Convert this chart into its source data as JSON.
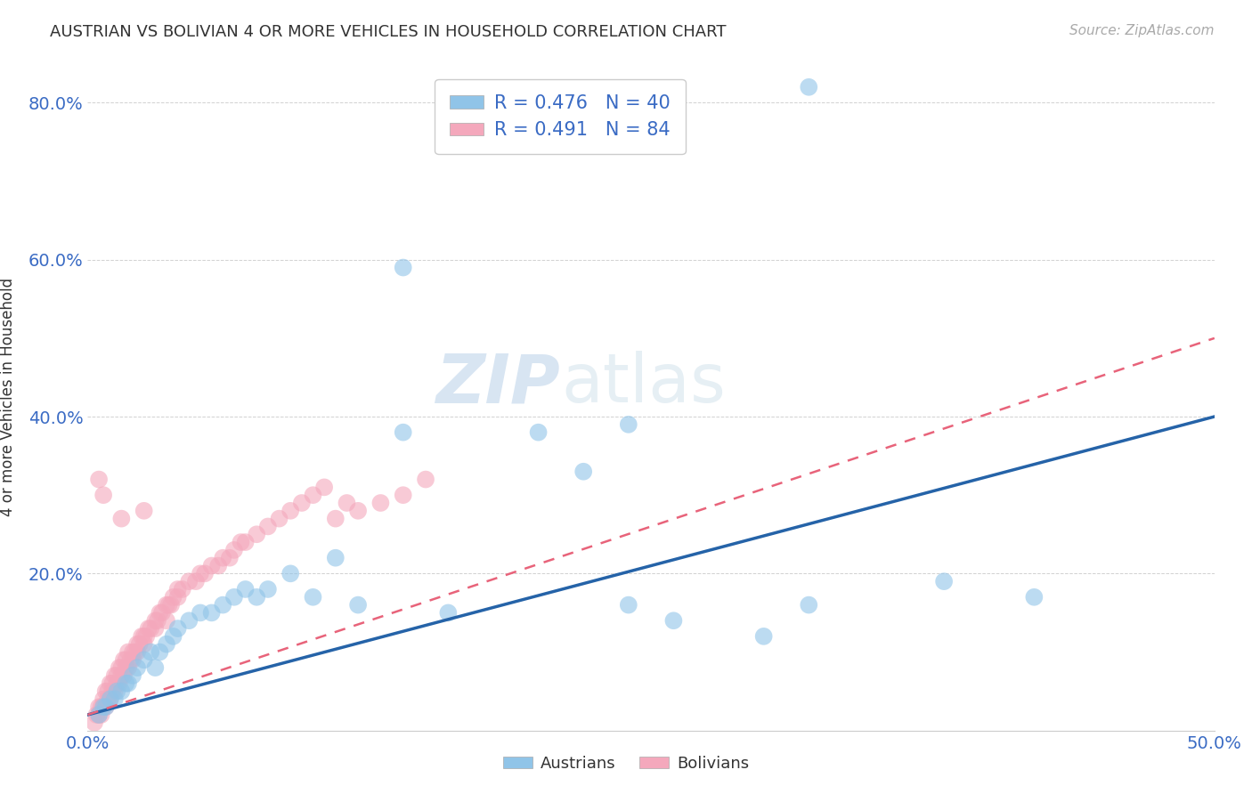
{
  "title": "AUSTRIAN VS BOLIVIAN 4 OR MORE VEHICLES IN HOUSEHOLD CORRELATION CHART",
  "source": "Source: ZipAtlas.com",
  "ylabel": "4 or more Vehicles in Household",
  "xlim": [
    0.0,
    0.5
  ],
  "ylim": [
    0.0,
    0.85
  ],
  "xtick_positions": [
    0.0,
    0.1,
    0.2,
    0.3,
    0.4,
    0.5
  ],
  "xticklabels": [
    "0.0%",
    "",
    "",
    "",
    "",
    "50.0%"
  ],
  "ytick_positions": [
    0.0,
    0.2,
    0.4,
    0.6,
    0.8
  ],
  "yticklabels": [
    "",
    "20.0%",
    "40.0%",
    "60.0%",
    "80.0%"
  ],
  "austrians_R": 0.476,
  "austrians_N": 40,
  "bolivians_R": 0.491,
  "bolivians_N": 84,
  "blue_scatter_color": "#90c4e8",
  "pink_scatter_color": "#f4a8bc",
  "blue_line_color": "#2563a8",
  "pink_line_color": "#e8637a",
  "watermark": "ZIPatlas",
  "legend_label_austrians": "Austrians",
  "legend_label_bolivians": "Bolivians",
  "austrians_x": [
    0.005,
    0.007,
    0.008,
    0.01,
    0.012,
    0.013,
    0.015,
    0.017,
    0.018,
    0.02,
    0.022,
    0.025,
    0.028,
    0.03,
    0.032,
    0.035,
    0.038,
    0.04,
    0.045,
    0.05,
    0.055,
    0.06,
    0.065,
    0.07,
    0.075,
    0.08,
    0.09,
    0.1,
    0.11,
    0.12,
    0.14,
    0.16,
    0.2,
    0.22,
    0.24,
    0.26,
    0.3,
    0.32,
    0.38,
    0.42
  ],
  "austrians_y": [
    0.02,
    0.03,
    0.03,
    0.04,
    0.04,
    0.05,
    0.05,
    0.06,
    0.06,
    0.07,
    0.08,
    0.09,
    0.1,
    0.08,
    0.1,
    0.11,
    0.12,
    0.13,
    0.14,
    0.15,
    0.15,
    0.16,
    0.17,
    0.18,
    0.17,
    0.18,
    0.2,
    0.17,
    0.22,
    0.16,
    0.38,
    0.15,
    0.38,
    0.33,
    0.16,
    0.14,
    0.12,
    0.16,
    0.19,
    0.17
  ],
  "bolivians_x": [
    0.003,
    0.004,
    0.005,
    0.005,
    0.006,
    0.006,
    0.007,
    0.007,
    0.008,
    0.008,
    0.009,
    0.009,
    0.01,
    0.01,
    0.011,
    0.011,
    0.012,
    0.012,
    0.013,
    0.013,
    0.014,
    0.014,
    0.015,
    0.015,
    0.016,
    0.016,
    0.017,
    0.017,
    0.018,
    0.018,
    0.019,
    0.02,
    0.02,
    0.021,
    0.022,
    0.022,
    0.023,
    0.024,
    0.025,
    0.025,
    0.026,
    0.027,
    0.028,
    0.03,
    0.03,
    0.031,
    0.032,
    0.033,
    0.035,
    0.035,
    0.036,
    0.037,
    0.038,
    0.04,
    0.04,
    0.042,
    0.045,
    0.048,
    0.05,
    0.052,
    0.055,
    0.058,
    0.06,
    0.063,
    0.065,
    0.068,
    0.07,
    0.075,
    0.08,
    0.085,
    0.09,
    0.095,
    0.1,
    0.105,
    0.11,
    0.115,
    0.12,
    0.13,
    0.14,
    0.15,
    0.005,
    0.007,
    0.025,
    0.015
  ],
  "bolivians_y": [
    0.01,
    0.02,
    0.02,
    0.03,
    0.02,
    0.03,
    0.03,
    0.04,
    0.03,
    0.05,
    0.04,
    0.05,
    0.04,
    0.06,
    0.05,
    0.06,
    0.05,
    0.07,
    0.06,
    0.07,
    0.06,
    0.08,
    0.07,
    0.08,
    0.07,
    0.09,
    0.08,
    0.09,
    0.08,
    0.1,
    0.09,
    0.09,
    0.1,
    0.1,
    0.1,
    0.11,
    0.11,
    0.12,
    0.11,
    0.12,
    0.12,
    0.13,
    0.13,
    0.13,
    0.14,
    0.14,
    0.15,
    0.15,
    0.14,
    0.16,
    0.16,
    0.16,
    0.17,
    0.17,
    0.18,
    0.18,
    0.19,
    0.19,
    0.2,
    0.2,
    0.21,
    0.21,
    0.22,
    0.22,
    0.23,
    0.24,
    0.24,
    0.25,
    0.26,
    0.27,
    0.28,
    0.29,
    0.3,
    0.31,
    0.27,
    0.29,
    0.28,
    0.29,
    0.3,
    0.32,
    0.32,
    0.3,
    0.28,
    0.27
  ],
  "blue_line_x0": 0.0,
  "blue_line_y0": 0.02,
  "blue_line_x1": 0.5,
  "blue_line_y1": 0.4,
  "pink_line_x0": 0.0,
  "pink_line_y0": 0.02,
  "pink_line_x1": 0.5,
  "pink_line_y1": 0.5
}
